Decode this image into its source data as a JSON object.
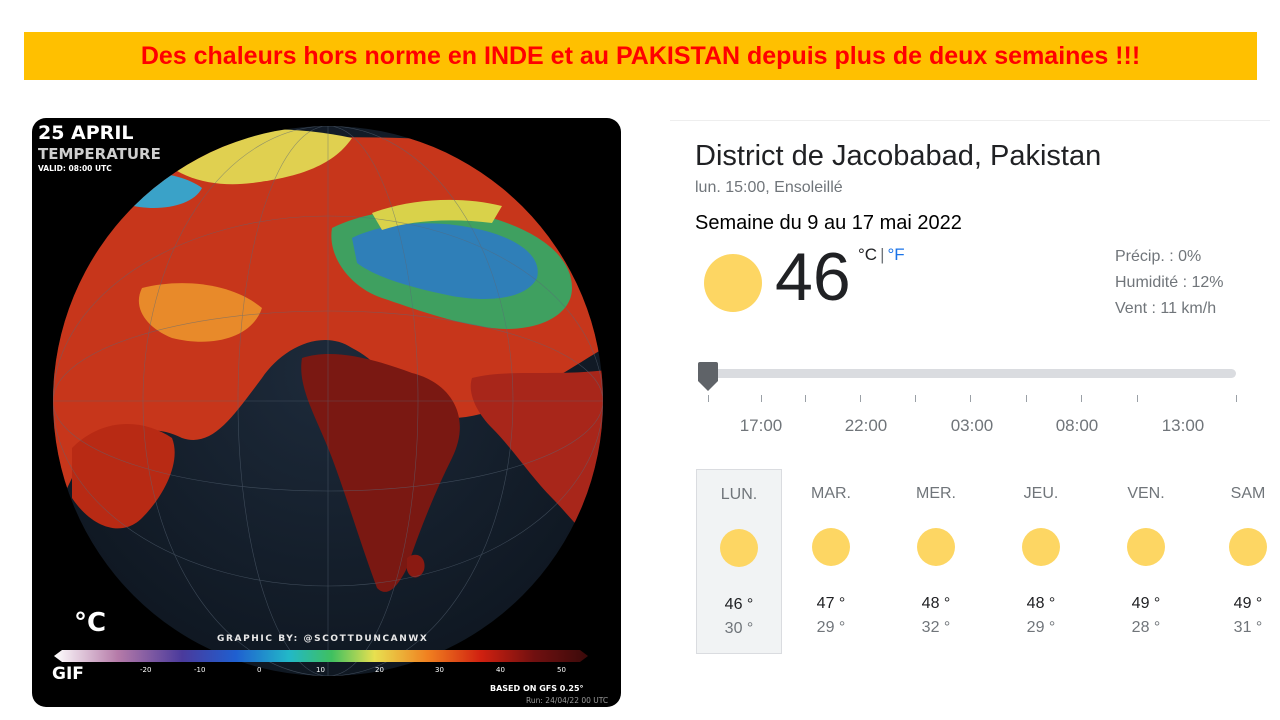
{
  "banner": {
    "text": "Des chaleurs hors norme en INDE et au PAKISTAN depuis plus de deux semaines !!!"
  },
  "map": {
    "date": "25 APRIL",
    "variable": "TEMPERATURE",
    "valid": "VALID: 08:00 UTC",
    "unit": "°C",
    "gif": "GIF",
    "credit": "GRAPHIC BY: @SCOTTDUNCANWX",
    "based_on": "BASED ON GFS 0.25°",
    "run": "Run: 24/04/22 00 UTC",
    "scale_ticks": [
      "-20",
      "-10",
      "0",
      "10",
      "20",
      "30",
      "40",
      "50"
    ]
  },
  "weather": {
    "location": "District de Jacobabad, Pakistan",
    "subtitle": "lun. 15:00, Ensoleillé",
    "week": "Semaine du 9 au 17 mai 2022",
    "temperature": "46",
    "unit_c": "°C",
    "unit_sep": "|",
    "unit_f": "°F",
    "precip": "Précip. : 0%",
    "humidity": "Humidité : 12%",
    "wind": "Vent : 11 km/h",
    "condition_icon": "sun-icon",
    "hours": [
      "17:00",
      "22:00",
      "03:00",
      "08:00",
      "13:00"
    ],
    "days": [
      {
        "name": "LUN.",
        "high": "46 °",
        "low": "30 °"
      },
      {
        "name": "MAR.",
        "high": "47 °",
        "low": "29 °"
      },
      {
        "name": "MER.",
        "high": "48 °",
        "low": "32 °"
      },
      {
        "name": "JEU.",
        "high": "48 °",
        "low": "29 °"
      },
      {
        "name": "VEN.",
        "high": "49 °",
        "low": "28 °"
      },
      {
        "name": "SAM",
        "high": "49 °",
        "low": "31 °"
      }
    ]
  },
  "colors": {
    "banner_bg": "#ffc000",
    "banner_text": "#ff0000",
    "sun": "#fdd663",
    "link_blue": "#1a73e8"
  }
}
